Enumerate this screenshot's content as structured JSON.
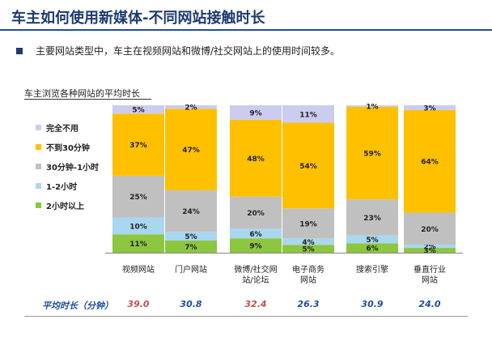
{
  "page": {
    "title": "车主如何使用新媒体-不同网站接触时长",
    "bullet": "主要网站类型中，车主在视频网站和微博/社交网站上的使用时间较多。",
    "avg_label": "平均时长（分钟）"
  },
  "colors": {
    "title": "#1f3a6e",
    "accent_rule": "#1f4e9a",
    "avg_label": "#1f4e9a",
    "avg_value_red": "#c0504d",
    "avg_value_blue": "#1f4e9a"
  },
  "chart_data": {
    "type": "bar",
    "stacked": true,
    "percent_stacked": true,
    "title": "车主浏览各种网站的平均时长",
    "categories": [
      [
        "视频网站"
      ],
      [
        "门户网站"
      ],
      [
        "微博/社交网",
        "站/论坛"
      ],
      [
        "电子商务",
        "网站"
      ],
      [
        "搜索引擎"
      ],
      [
        "垂直行业",
        "网站"
      ]
    ],
    "series": [
      {
        "name": "2小时以上",
        "color": "#8dc63f",
        "values": [
          11,
          7,
          9,
          5,
          6,
          3
        ]
      },
      {
        "name": "1-2小时",
        "color": "#a9d7f0",
        "values": [
          10,
          5,
          6,
          4,
          5,
          2
        ]
      },
      {
        "name": "30分钟-1小时",
        "color": "#c0c0c0",
        "values": [
          25,
          24,
          20,
          19,
          23,
          20
        ]
      },
      {
        "name": "不到30分钟",
        "color": "#ffc000",
        "values": [
          37,
          47,
          48,
          54,
          59,
          64
        ]
      },
      {
        "name": "完全不用",
        "color": "#ccccee",
        "values": [
          5,
          2,
          9,
          11,
          1,
          3
        ]
      }
    ],
    "legend_order": [
      "完全不用",
      "不到30分钟",
      "30分钟-1小时",
      "1-2小时",
      "2小时以上"
    ],
    "legend_position": "left",
    "averages": [
      {
        "value": "39.0",
        "color": "#c0504d"
      },
      {
        "value": "30.8",
        "color": "#1f4e9a"
      },
      {
        "value": "32.4",
        "color": "#c0504d"
      },
      {
        "value": "26.3",
        "color": "#1f4e9a"
      },
      {
        "value": "30.9",
        "color": "#1f4e9a"
      },
      {
        "value": "24.0",
        "color": "#1f4e9a"
      }
    ],
    "grid": false
  }
}
